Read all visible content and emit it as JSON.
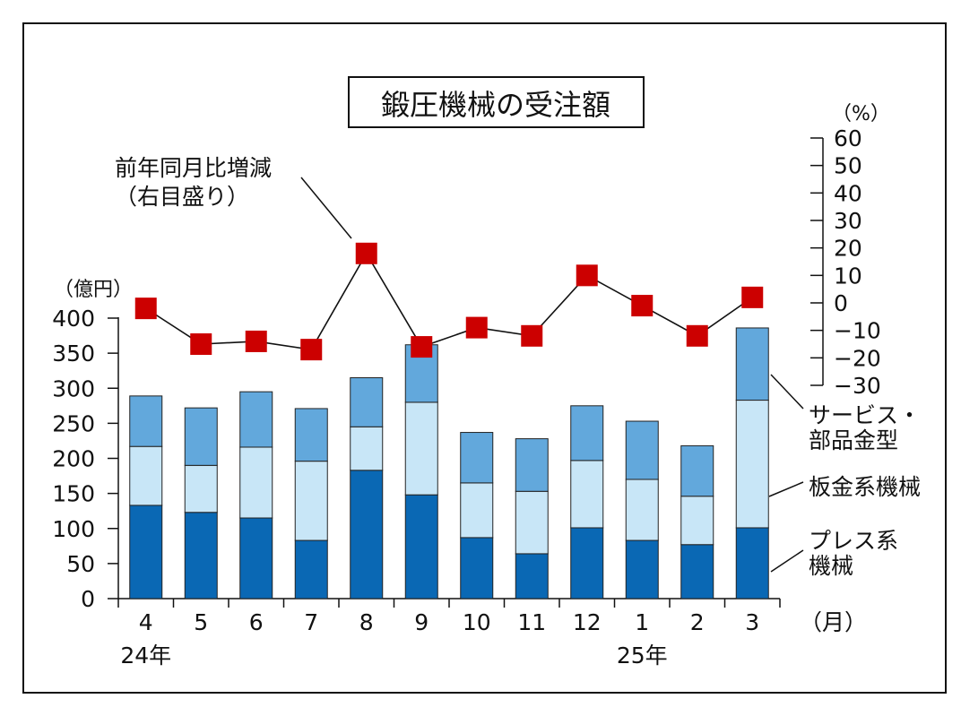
{
  "chart_data": {
    "type": "bar",
    "title": "鍛圧機械の受注額",
    "categories": [
      "4",
      "5",
      "6",
      "7",
      "8",
      "9",
      "10",
      "11",
      "12",
      "1",
      "2",
      "3"
    ],
    "x_unit": "（月）",
    "year_labels": [
      {
        "label": "24年",
        "category_index": 0
      },
      {
        "label": "25年",
        "category_index": 9
      }
    ],
    "y_left": {
      "unit": "（億円）",
      "ylim": [
        0,
        400
      ],
      "ticks": [
        0,
        50,
        100,
        150,
        200,
        250,
        300,
        350,
        400
      ]
    },
    "y_right": {
      "unit": "（%）",
      "ylim": [
        -30,
        60
      ],
      "ticks": [
        -30,
        -20,
        -10,
        0,
        10,
        20,
        30,
        40,
        50,
        60
      ]
    },
    "stacked": true,
    "series": [
      {
        "name": "プレス系機械",
        "name_lines": [
          "プレス系",
          "機械"
        ],
        "color": "#0a68b4",
        "values": [
          133,
          123,
          115,
          83,
          183,
          148,
          87,
          64,
          101,
          83,
          77,
          101
        ]
      },
      {
        "name": "板金系機械",
        "name_lines": [
          "板金系機械"
        ],
        "color": "#c8e6f7",
        "values": [
          84,
          67,
          101,
          113,
          62,
          132,
          78,
          89,
          96,
          87,
          69,
          182
        ]
      },
      {
        "name": "サービス・部品金型",
        "name_lines": [
          "サービス・",
          "部品金型"
        ],
        "color": "#62a8dc",
        "values": [
          72,
          82,
          79,
          75,
          70,
          82,
          72,
          75,
          78,
          83,
          72,
          103
        ]
      }
    ],
    "line_series": {
      "name": "前年同月比増減",
      "name_lines": [
        "前年同月比増減",
        "（右目盛り）"
      ],
      "axis": "right",
      "marker_color": "#cc0000",
      "values": [
        -2,
        -15,
        -14,
        -17,
        18,
        -16,
        -9,
        -12,
        10,
        -1,
        -12,
        2
      ]
    },
    "grid": false
  }
}
